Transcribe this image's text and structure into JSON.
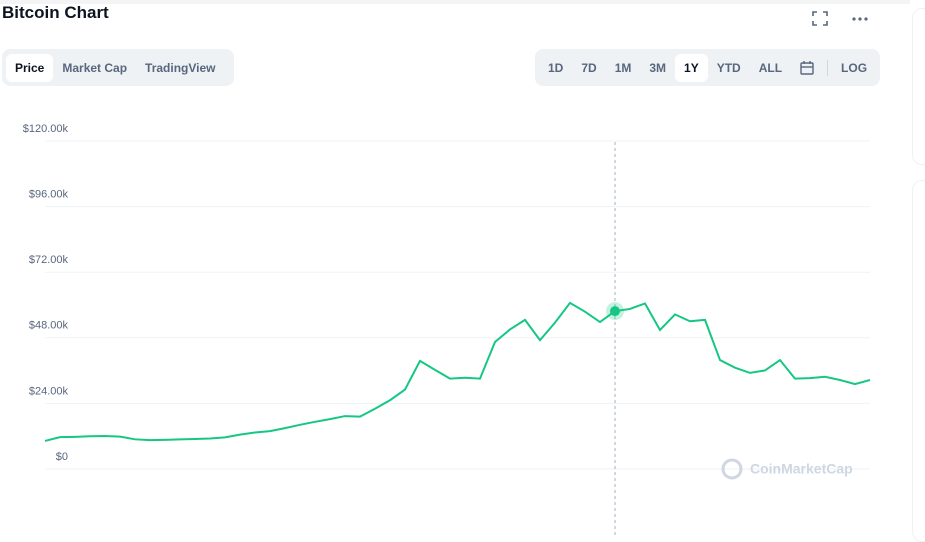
{
  "chart_data": {
    "type": "line",
    "title": "Bitcoin Chart",
    "color": "#16c784",
    "values": [
      7700,
      9100,
      9200,
      9400,
      9500,
      9300,
      8300,
      8000,
      8100,
      8300,
      8400,
      8600,
      9000,
      10000,
      10800,
      11300,
      12400,
      13600,
      14700,
      15700,
      16800,
      16600,
      19500,
      22600,
      26500,
      37000,
      33700,
      30500,
      30800,
      30500,
      43900,
      48500,
      52000,
      44600,
      51000,
      58200,
      55000,
      51200,
      55200,
      56000,
      58000,
      48300,
      54000,
      51500,
      52000,
      37300,
      34500,
      32600,
      33500,
      37300,
      30500,
      30700,
      31200,
      30000,
      28500,
      30000
    ],
    "ylim": [
      0,
      120000
    ],
    "yticks": [
      {
        "value": 0,
        "label": "$0"
      },
      {
        "value": 24000,
        "label": "$24.00k"
      },
      {
        "value": 48000,
        "label": "$48.00k"
      },
      {
        "value": 72000,
        "label": "$72.00k"
      },
      {
        "value": 96000,
        "label": "$96.00k"
      },
      {
        "value": 120000,
        "label": "$120.00k"
      }
    ],
    "grid": true
  },
  "ui": {
    "tabs": [
      "Price",
      "Market Cap",
      "TradingView"
    ],
    "ranges": [
      "1D",
      "7D",
      "1M",
      "3M",
      "1Y",
      "YTD",
      "ALL"
    ],
    "log": "LOG",
    "watermark": "CoinMarketCap"
  }
}
